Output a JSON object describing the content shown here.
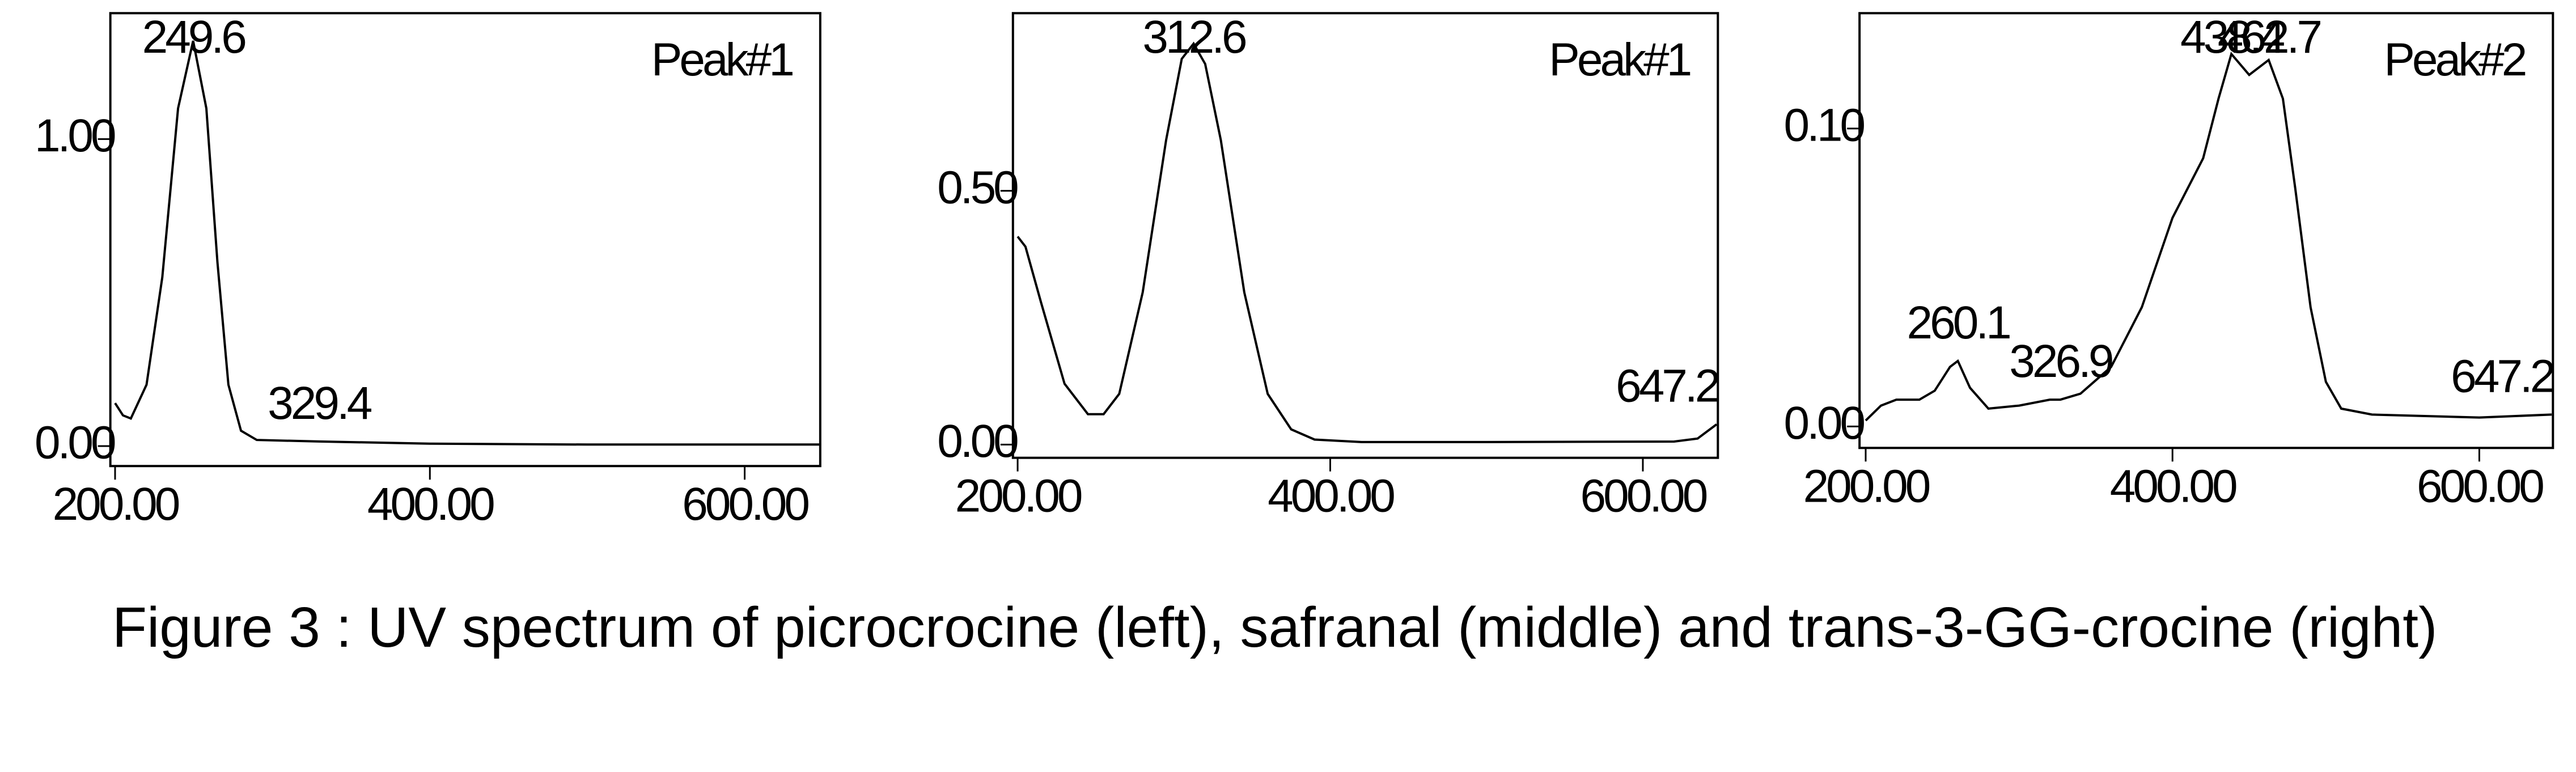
{
  "chart_data": [
    {
      "type": "line",
      "peak_name": "Peak#1",
      "x": [
        200,
        205,
        210,
        220,
        230,
        240,
        249.6,
        258,
        265,
        272,
        280,
        290,
        329.4,
        400,
        500,
        648
      ],
      "series": [
        {
          "color": "#000000",
          "values": [
            0.14,
            0.1,
            0.09,
            0.2,
            0.55,
            1.1,
            1.32,
            1.1,
            0.6,
            0.2,
            0.05,
            0.02,
            0.015,
            0.008,
            0.005,
            0.005
          ]
        }
      ],
      "peaks": [
        249.6,
        329.4
      ],
      "xlim": [
        197,
        648
      ],
      "ylim": [
        -0.065,
        1.41
      ],
      "xticks": [
        {
          "value": 200,
          "label": "200.00"
        },
        {
          "value": 400,
          "label": "400.00"
        },
        {
          "value": 600,
          "label": "600.00"
        }
      ],
      "yticks": [
        {
          "value": 0,
          "label": "0.00"
        },
        {
          "value": 1,
          "label": "1.00"
        }
      ]
    },
    {
      "type": "line",
      "peak_name": "Peak#1",
      "x": [
        200,
        205,
        215,
        230,
        245,
        255,
        265,
        280,
        295,
        305,
        312.6,
        320,
        330,
        345,
        360,
        375,
        390,
        420,
        500,
        620,
        635,
        647.2
      ],
      "series": [
        {
          "color": "#000000",
          "values": [
            0.41,
            0.39,
            0.28,
            0.12,
            0.06,
            0.06,
            0.1,
            0.3,
            0.6,
            0.76,
            0.79,
            0.75,
            0.6,
            0.3,
            0.1,
            0.03,
            0.01,
            0.005,
            0.005,
            0.006,
            0.012,
            0.04
          ]
        }
      ],
      "peaks": [
        312.6,
        647.2
      ],
      "xlim": [
        197,
        648
      ],
      "ylim": [
        -0.026,
        0.85
      ],
      "xticks": [
        {
          "value": 200,
          "label": "200.00"
        },
        {
          "value": 400,
          "label": "400.00"
        },
        {
          "value": 600,
          "label": "600.00"
        }
      ],
      "yticks": [
        {
          "value": 0,
          "label": "0.00"
        },
        {
          "value": 0.5,
          "label": "0.50"
        }
      ]
    },
    {
      "type": "line",
      "peak_name": "Peak#2",
      "x": [
        200,
        210,
        220,
        235,
        245,
        255,
        260.1,
        268,
        280,
        300,
        320,
        326.9,
        340,
        360,
        380,
        400,
        420,
        430,
        438.4,
        450,
        462.7,
        472,
        480,
        490,
        500,
        510,
        530,
        600,
        647.2
      ],
      "series": [
        {
          "color": "#000000",
          "values": [
            0.002,
            0.007,
            0.009,
            0.009,
            0.012,
            0.02,
            0.022,
            0.013,
            0.006,
            0.007,
            0.009,
            0.009,
            0.011,
            0.02,
            0.04,
            0.07,
            0.09,
            0.11,
            0.125,
            0.118,
            0.123,
            0.11,
            0.08,
            0.04,
            0.015,
            0.006,
            0.004,
            0.003,
            0.004
          ]
        }
      ],
      "peaks": [
        260.1,
        326.9,
        438.4,
        462.7,
        647.2
      ],
      "xlim": [
        196,
        648
      ],
      "ylim": [
        -0.0072,
        0.1387
      ],
      "xticks": [
        {
          "value": 200,
          "label": "200.00"
        },
        {
          "value": 400,
          "label": "400.00"
        },
        {
          "value": 600,
          "label": "600.00"
        }
      ],
      "yticks": [
        {
          "value": 0,
          "label": "0.00"
        },
        {
          "value": 0.1,
          "label": "0.10"
        }
      ]
    }
  ],
  "caption": "Figure 3 : UV spectrum of picrocrocine (left), safranal (middle) and trans-3-GG-crocine (right)"
}
